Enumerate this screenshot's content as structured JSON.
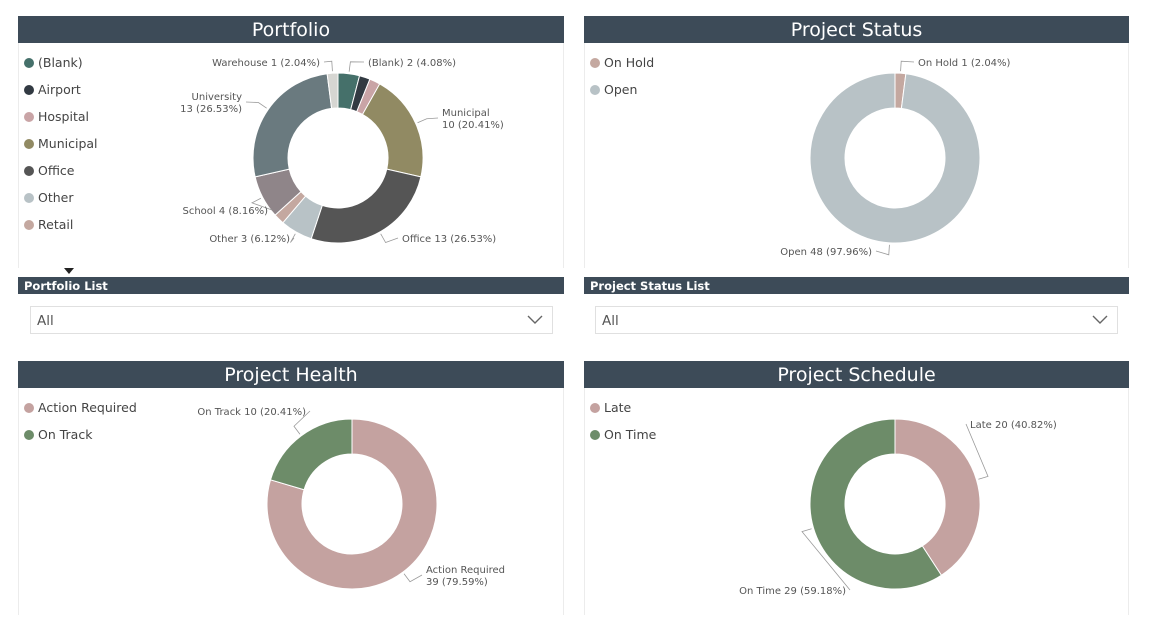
{
  "colors": {
    "header_bg": "#3d4b58",
    "blank": "#45706a",
    "airport": "#323a42",
    "hospital": "#c9a4a6",
    "municipal": "#918a63",
    "office": "#555555",
    "other": "#b8c2c6",
    "retail": "#c4a8a0",
    "school": "#8f8589",
    "university": "#6a7a7f",
    "warehouse": "#d6d6d2",
    "on_hold": "#c4a8a0",
    "open": "#b8c2c6",
    "action_required": "#c4a2a0",
    "on_track": "#6d8c69",
    "late": "#c4a2a0",
    "on_time": "#6d8c69"
  },
  "legend_more_icon": "caret-down-icon",
  "dropdown_icon": "chevron-down-icon",
  "chart_data": [
    {
      "id": "portfolio",
      "type": "pie",
      "title": "Portfolio",
      "legend": [
        {
          "label": "(Blank)",
          "color_key": "blank"
        },
        {
          "label": "Airport",
          "color_key": "airport"
        },
        {
          "label": "Hospital",
          "color_key": "hospital"
        },
        {
          "label": "Municipal",
          "color_key": "municipal"
        },
        {
          "label": "Office",
          "color_key": "office"
        },
        {
          "label": "Other",
          "color_key": "other"
        },
        {
          "label": "Retail",
          "color_key": "retail"
        }
      ],
      "slices": [
        {
          "label": "(Blank)",
          "value": 2,
          "color_key": "blank",
          "data_label": "(Blank) 2 (4.08%)"
        },
        {
          "label": "Airport",
          "value": 1,
          "color_key": "airport",
          "data_label": ""
        },
        {
          "label": "Hospital",
          "value": 1,
          "color_key": "hospital",
          "data_label": ""
        },
        {
          "label": "Municipal",
          "value": 10,
          "color_key": "municipal",
          "data_label": "Municipal\n10 (20.41%)"
        },
        {
          "label": "Office",
          "value": 13,
          "color_key": "office",
          "data_label": "Office 13 (26.53%)"
        },
        {
          "label": "Other",
          "value": 3,
          "color_key": "other",
          "data_label": "Other 3 (6.12%)"
        },
        {
          "label": "Retail",
          "value": 1,
          "color_key": "retail",
          "data_label": ""
        },
        {
          "label": "School",
          "value": 4,
          "color_key": "school",
          "data_label": "School 4 (8.16%)"
        },
        {
          "label": "University",
          "value": 13,
          "color_key": "university",
          "data_label": "University\n13 (26.53%)"
        },
        {
          "label": "Warehouse",
          "value": 1,
          "color_key": "warehouse",
          "data_label": "Warehouse 1 (2.04%)"
        }
      ]
    },
    {
      "id": "status",
      "type": "pie",
      "title": "Project Status",
      "legend": [
        {
          "label": "On Hold",
          "color_key": "on_hold"
        },
        {
          "label": "Open",
          "color_key": "open"
        }
      ],
      "slices": [
        {
          "label": "On Hold",
          "value": 1,
          "color_key": "on_hold",
          "data_label": "On Hold 1 (2.04%)"
        },
        {
          "label": "Open",
          "value": 48,
          "color_key": "open",
          "data_label": "Open 48 (97.96%)"
        }
      ]
    },
    {
      "id": "health",
      "type": "pie",
      "title": "Project Health",
      "legend": [
        {
          "label": "Action Required",
          "color_key": "action_required"
        },
        {
          "label": "On Track",
          "color_key": "on_track"
        }
      ],
      "slices": [
        {
          "label": "Action Required",
          "value": 39,
          "color_key": "action_required",
          "data_label": "Action Required\n39 (79.59%)"
        },
        {
          "label": "On Track",
          "value": 10,
          "color_key": "on_track",
          "data_label": "On Track 10 (20.41%)"
        }
      ]
    },
    {
      "id": "schedule",
      "type": "pie",
      "title": "Project Schedule",
      "legend": [
        {
          "label": "Late",
          "color_key": "late"
        },
        {
          "label": "On Time",
          "color_key": "on_time"
        }
      ],
      "slices": [
        {
          "label": "Late",
          "value": 20,
          "color_key": "late",
          "data_label": "Late 20 (40.82%)"
        },
        {
          "label": "On Time",
          "value": 29,
          "color_key": "on_time",
          "data_label": "On Time 29 (59.18%)"
        }
      ]
    }
  ],
  "slicers": {
    "portfolio_list": {
      "title": "Portfolio List",
      "value": "All"
    },
    "status_list": {
      "title": "Project Status List",
      "value": "All"
    }
  }
}
